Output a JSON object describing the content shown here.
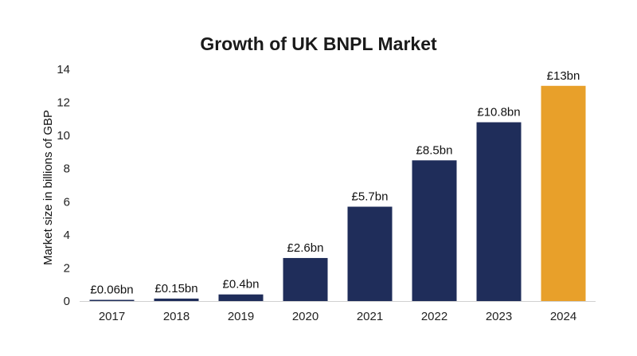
{
  "chart_data": {
    "type": "bar",
    "title": "Growth of UK BNPL Market",
    "xlabel": "",
    "ylabel": "Market size in billions of GBP",
    "categories": [
      "2017",
      "2018",
      "2019",
      "2020",
      "2021",
      "2022",
      "2023",
      "2024"
    ],
    "values": [
      0.06,
      0.15,
      0.4,
      2.6,
      5.7,
      8.5,
      10.8,
      13
    ],
    "data_labels": [
      "£0.06bn",
      "£0.15bn",
      "£0.4bn",
      "£2.6bn",
      "£5.7bn",
      "£8.5bn",
      "£10.8bn",
      "£13bn"
    ],
    "ylim": [
      0,
      14
    ],
    "yticks": [
      0,
      2,
      4,
      6,
      8,
      10,
      12,
      14
    ],
    "grid": false,
    "legend": "none",
    "colors": {
      "default_bar": "#1f2d5a",
      "highlight_bar": "#e8a02a",
      "axis_line": "#d0d0d0"
    },
    "highlight_index": 7
  }
}
